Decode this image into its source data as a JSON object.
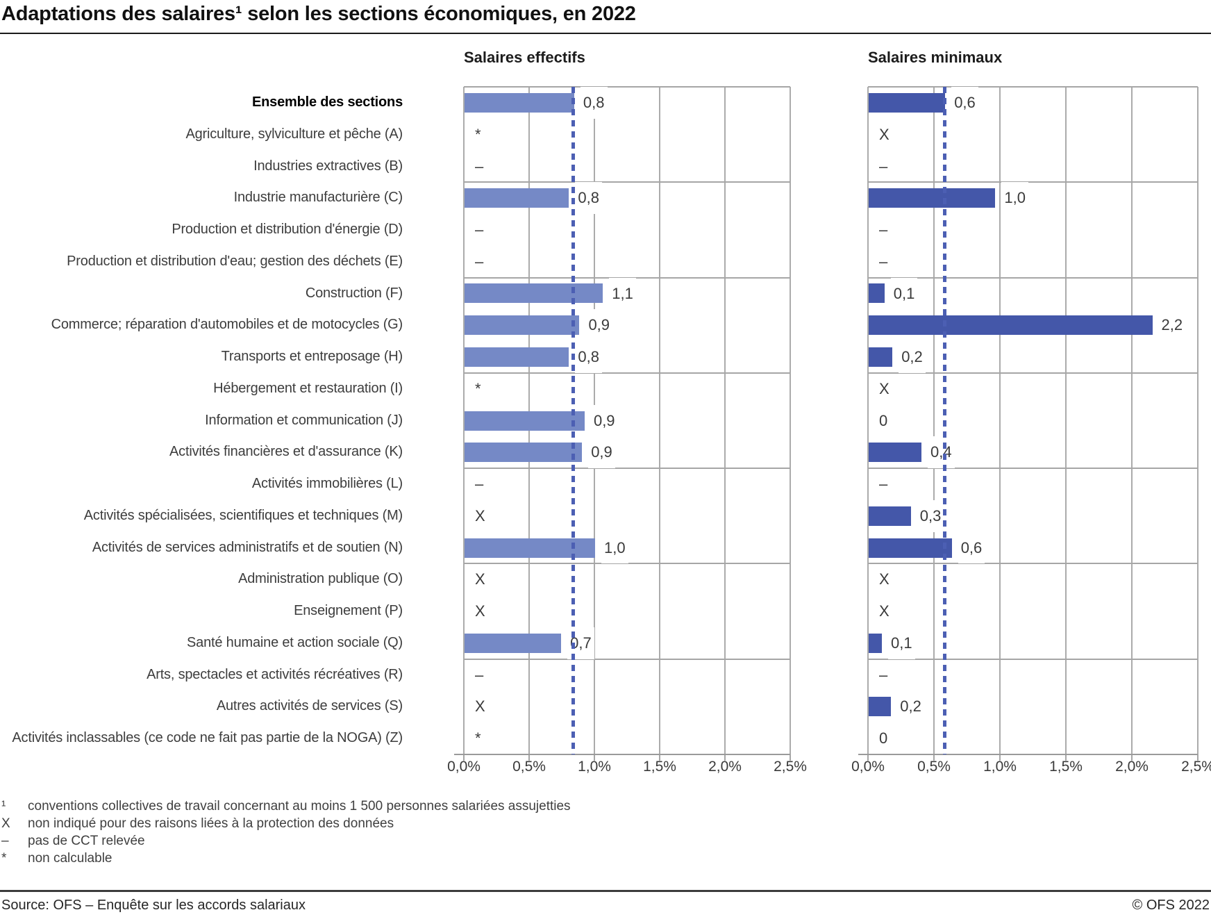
{
  "title": "Adaptations des salaires¹ selon les sections économiques, en 2022",
  "colors": {
    "bar_effectifs": "#7589C6",
    "bar_minimaux": "#4457A9",
    "reference_line": "#4C5FB3",
    "grid": "#A9A9A9"
  },
  "chart_data": {
    "type": "bar",
    "orientation": "horizontal",
    "unit": "%",
    "xlim": [
      0,
      2.5
    ],
    "xtick_labels": [
      "0,0%",
      "0,5%",
      "1,0%",
      "1,5%",
      "2,0%",
      "2,5%"
    ],
    "grid": true,
    "panels": [
      {
        "key": "eff",
        "title": "Salaires effectifs",
        "reference_line_value": 0.84
      },
      {
        "key": "min",
        "title": "Salaires minimaux",
        "reference_line_value": 0.58
      }
    ],
    "rows": [
      {
        "label": "Ensemble des sections",
        "bold": true,
        "eff": {
          "v": 0.84,
          "t": "0,8"
        },
        "min": {
          "v": 0.58,
          "t": "0,6"
        }
      },
      {
        "label": "Agriculture, sylviculture et pêche (A)",
        "eff": {
          "v": null,
          "t": "*"
        },
        "min": {
          "v": null,
          "t": "X"
        }
      },
      {
        "label": "Industries extractives (B)",
        "eff": {
          "v": null,
          "t": "–"
        },
        "min": {
          "v": null,
          "t": "–"
        }
      },
      {
        "label": "Industrie manufacturière (C)",
        "eff": {
          "v": 0.8,
          "t": "0,8"
        },
        "min": {
          "v": 0.96,
          "t": "1,0"
        }
      },
      {
        "label": "Production et distribution d'énergie (D)",
        "eff": {
          "v": null,
          "t": "–"
        },
        "min": {
          "v": null,
          "t": "–"
        }
      },
      {
        "label": "Production et distribution d'eau; gestion des déchets (E)",
        "eff": {
          "v": null,
          "t": "–"
        },
        "min": {
          "v": null,
          "t": "–"
        }
      },
      {
        "label": "Construction (F)",
        "eff": {
          "v": 1.06,
          "t": "1,1"
        },
        "min": {
          "v": 0.12,
          "t": "0,1"
        }
      },
      {
        "label": "Commerce; réparation d'automobiles et de motocycles (G)",
        "eff": {
          "v": 0.88,
          "t": "0,9"
        },
        "min": {
          "v": 2.15,
          "t": "2,2"
        }
      },
      {
        "label": "Transports et entreposage (H)",
        "eff": {
          "v": 0.8,
          "t": "0,8"
        },
        "min": {
          "v": 0.18,
          "t": "0,2"
        }
      },
      {
        "label": "Hébergement et restauration (I)",
        "eff": {
          "v": null,
          "t": "*"
        },
        "min": {
          "v": null,
          "t": "X"
        }
      },
      {
        "label": "Information et communication (J)",
        "eff": {
          "v": 0.92,
          "t": "0,9"
        },
        "min": {
          "v": 0,
          "t": "0"
        }
      },
      {
        "label": "Activités financières et d'assurance (K)",
        "eff": {
          "v": 0.9,
          "t": "0,9"
        },
        "min": {
          "v": 0.4,
          "t": "0,4"
        }
      },
      {
        "label": "Activités immobilières (L)",
        "eff": {
          "v": null,
          "t": "–"
        },
        "min": {
          "v": null,
          "t": "–"
        }
      },
      {
        "label": "Activités spécialisées, scientifiques et techniques (M)",
        "eff": {
          "v": null,
          "t": "X"
        },
        "min": {
          "v": 0.32,
          "t": "0,3"
        }
      },
      {
        "label": "Activités de services administratifs et de soutien (N)",
        "eff": {
          "v": 1.0,
          "t": "1,0"
        },
        "min": {
          "v": 0.63,
          "t": "0,6"
        }
      },
      {
        "label": "Administration publique (O)",
        "eff": {
          "v": null,
          "t": "X"
        },
        "min": {
          "v": null,
          "t": "X"
        }
      },
      {
        "label": "Enseignement (P)",
        "eff": {
          "v": null,
          "t": "X"
        },
        "min": {
          "v": null,
          "t": "X"
        }
      },
      {
        "label": "Santé humaine et action sociale (Q)",
        "eff": {
          "v": 0.74,
          "t": "0,7"
        },
        "min": {
          "v": 0.1,
          "t": "0,1"
        }
      },
      {
        "label": "Arts, spectacles et activités récréatives (R)",
        "eff": {
          "v": null,
          "t": "–"
        },
        "min": {
          "v": null,
          "t": "–"
        }
      },
      {
        "label": "Autres activités de services (S)",
        "eff": {
          "v": null,
          "t": "X"
        },
        "min": {
          "v": 0.17,
          "t": "0,2"
        }
      },
      {
        "label": "Activités inclassables (ce code ne fait pas partie de la NOGA) (Z)",
        "eff": {
          "v": null,
          "t": "*"
        },
        "min": {
          "v": 0,
          "t": "0"
        }
      }
    ]
  },
  "footnotes": [
    {
      "symbol": "¹",
      "text": "conventions collectives de travail concernant au moins 1 500 personnes salariées assujetties"
    },
    {
      "symbol": "X",
      "text": "non indiqué pour des raisons liées à la protection des données"
    },
    {
      "symbol": "–",
      "text": "pas de CCT relevée"
    },
    {
      "symbol": "*",
      "text": "non calculable"
    }
  ],
  "footer": {
    "source": "Source: OFS – Enquête sur les accords salariaux",
    "copyright": "© OFS 2022"
  }
}
